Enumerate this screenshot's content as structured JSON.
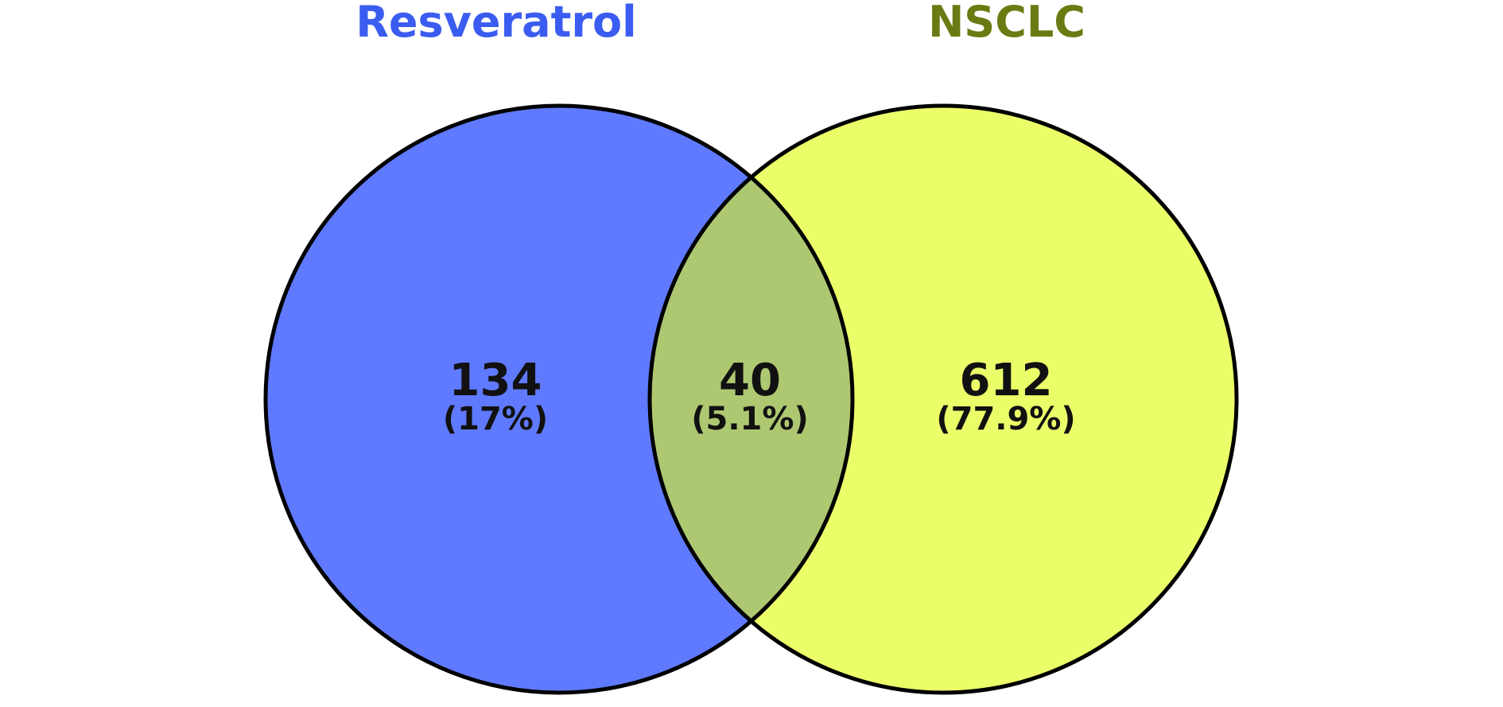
{
  "chart_data": {
    "type": "venn",
    "sets": [
      {
        "name": "Resveratrol",
        "color": "#3a5cf0",
        "fill": "#5f7afe"
      },
      {
        "name": "NSCLC",
        "color": "#6b7a12",
        "fill": "#ebfe69"
      }
    ],
    "overlap_fill": "#aec872",
    "regions": [
      {
        "label": "Resveratrol only",
        "count": "134",
        "percent": "(17%)"
      },
      {
        "label": "Intersection",
        "count": "40",
        "percent": "(5.1%)"
      },
      {
        "label": "NSCLC only",
        "count": "612",
        "percent": "(77.9%)"
      }
    ]
  }
}
